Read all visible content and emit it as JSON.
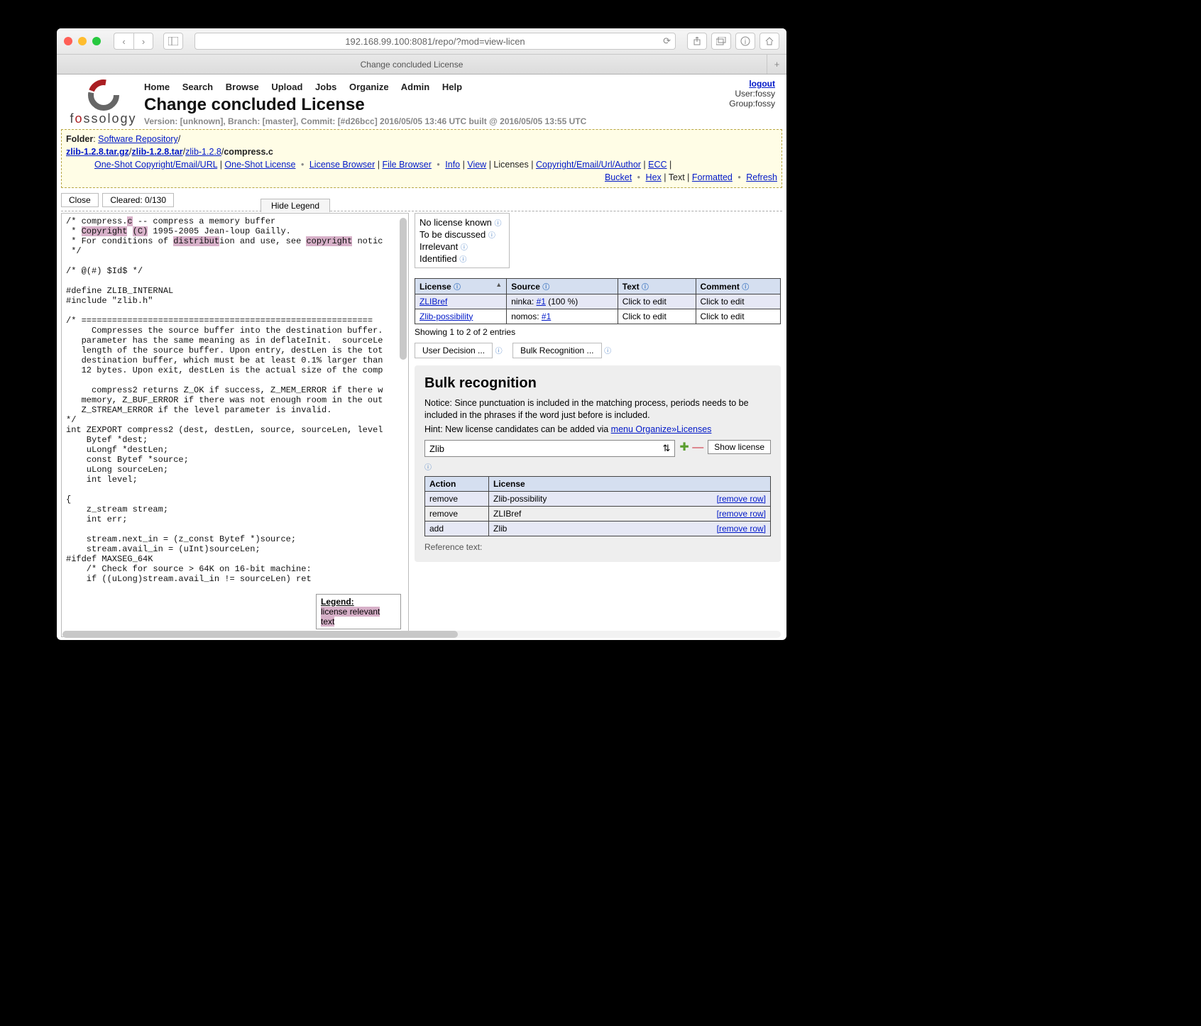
{
  "browser": {
    "url": "192.168.99.100:8081/repo/?mod=view-licen",
    "tab_title": "Change concluded License"
  },
  "app": {
    "logo_text_pre": "f",
    "logo_text_o": "o",
    "logo_text_post": "ssology",
    "menu": [
      "Home",
      "Search",
      "Browse",
      "Upload",
      "Jobs",
      "Organize",
      "Admin",
      "Help"
    ],
    "title": "Change concluded License",
    "version": "Version: [unknown], Branch: [master], Commit: [#d26bcc] 2016/05/05 13:46 UTC built @ 2016/05/05 13:55 UTC",
    "logout": "logout",
    "user": "User:fossy",
    "group": "Group:fossy"
  },
  "crumb": {
    "folder_label": "Folder",
    "folder_link": "Software Repository",
    "path1": "zlib-1.2.8.tar.gz",
    "path2": "zlib-1.2.8.tar",
    "path3": "zlib-1.2.8",
    "path_file": "compress.c",
    "links1": [
      "One-Shot Copyright/Email/URL",
      "One-Shot License"
    ],
    "links2": [
      "License Browser",
      "File Browser"
    ],
    "links3": [
      "Info",
      "View"
    ],
    "plain3": [
      "Licenses",
      "Copyright/Email/Url/Author",
      "ECC"
    ],
    "links4": [
      "Bucket"
    ],
    "links5": [
      "Hex"
    ],
    "plain5": [
      "Text"
    ],
    "links5b": [
      "Formatted"
    ],
    "links6": [
      "Refresh"
    ]
  },
  "btns": {
    "close": "Close",
    "cleared": "Cleared: 0/130",
    "hide_legend": "Hide Legend"
  },
  "code_lines": "/* compress.|c| -- compress a memory buffer\n * |Copyright| |(C)| 1995-2005 Jean-loup Gailly.\n * For conditions of |distribut|ion and use, see |copyright| notic\n */\n\n/* @(#) $Id$ */\n\n#define ZLIB_INTERNAL\n#include \"zlib.h\"\n\n/* =========================================================\n     Compresses the source buffer into the destination buffer.\n   parameter has the same meaning as in deflateInit.  sourceLe\n   length of the source buffer. Upon entry, destLen is the tot\n   destination buffer, which must be at least 0.1% larger than\n   12 bytes. Upon exit, destLen is the actual size of the comp\n\n     compress2 returns Z_OK if success, Z_MEM_ERROR if there w\n   memory, Z_BUF_ERROR if there was not enough room in the out\n   Z_STREAM_ERROR if the level parameter is invalid.\n*/\nint ZEXPORT compress2 (dest, destLen, source, sourceLen, level\n    Bytef *dest;\n    uLongf *destLen;\n    const Bytef *source;\n    uLong sourceLen;\n    int level;\n\n{\n    z_stream stream;\n    int err;\n\n    stream.next_in = (z_const Bytef *)source;\n    stream.avail_in = (uInt)sourceLen;\n#ifdef MAXSEG_64K\n    /* Check for source > 64K on 16-bit machine:\n    if ((uLong)stream.avail_in != sourceLen) ret",
  "legend": {
    "title": "Legend:",
    "row": "license relevant text"
  },
  "status": [
    "No license known",
    "To be discussed",
    "Irrelevant",
    "Identified"
  ],
  "lic_table": {
    "headers": [
      "License",
      "Source",
      "Text",
      "Comment"
    ],
    "rows": [
      {
        "license": "ZLIBref",
        "source_pre": "ninka: ",
        "source_link": "#1",
        "source_post": " (100 %)",
        "text": "Click to edit",
        "comment": "Click to edit"
      },
      {
        "license": "Zlib-possibility",
        "source_pre": "nomos: ",
        "source_link": "#1",
        "source_post": "",
        "text": "Click to edit",
        "comment": "Click to edit"
      }
    ],
    "showing": "Showing 1 to 2 of 2 entries"
  },
  "panels": {
    "user_decision": "User Decision ...",
    "bulk_btn": "Bulk Recognition ..."
  },
  "bulk": {
    "title": "Bulk recognition",
    "notice": "Notice: Since punctuation is included in the matching process, periods needs to be included in the phrases if the word just before is included.",
    "hint_pre": "Hint: New license candidates can be added via ",
    "hint_link": "menu Organize»Licenses",
    "select": "Zlib",
    "show_license": "Show license",
    "action_headers": [
      "Action",
      "License"
    ],
    "rows": [
      {
        "action": "remove",
        "license": "Zlib-possibility",
        "rr": "[remove row]"
      },
      {
        "action": "remove",
        "license": "ZLIBref",
        "rr": "[remove row]"
      },
      {
        "action": "add",
        "license": "Zlib",
        "rr": "[remove row]"
      }
    ],
    "ref": "Reference text:"
  }
}
